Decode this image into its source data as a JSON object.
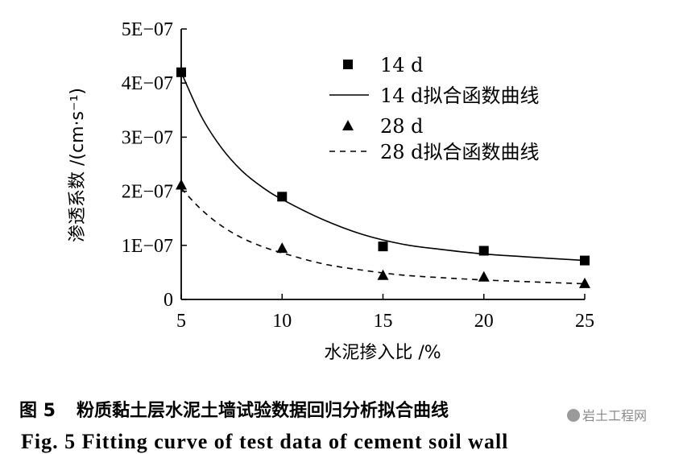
{
  "chart_data": {
    "type": "scatter",
    "xlabel": "水泥掺入比 /%",
    "ylabel": "渗透系数 /(cm·s⁻¹)",
    "x_ticks": [
      5,
      10,
      15,
      20,
      25
    ],
    "y_ticks": [
      "0",
      "1E−07",
      "2E−07",
      "3E−07",
      "4E−07",
      "5E−07"
    ],
    "xlim": [
      5,
      25
    ],
    "ylim": [
      0,
      5e-07
    ],
    "grid": false,
    "legend_position": "top-right",
    "series": [
      {
        "name": "14 d",
        "marker": "square",
        "x": [
          5,
          10,
          15,
          20,
          25
        ],
        "y": [
          4.2e-07,
          1.9e-07,
          9.8e-08,
          9e-08,
          7.2e-08
        ]
      },
      {
        "name": "14 d拟合函数曲线",
        "style": "solid",
        "x": [
          5,
          6,
          7,
          8,
          9,
          10,
          12,
          14,
          16,
          18,
          20,
          22,
          25
        ],
        "y": [
          4.2e-07,
          3.38e-07,
          2.8e-07,
          2.38e-07,
          2.08e-07,
          1.85e-07,
          1.48e-07,
          1.2e-07,
          1.02e-07,
          9.2e-08,
          8.4e-08,
          7.9e-08,
          7.2e-08
        ]
      },
      {
        "name": "28 d",
        "marker": "triangle",
        "x": [
          5,
          10,
          15,
          20,
          25
        ],
        "y": [
          2.12e-07,
          9.5e-08,
          4.5e-08,
          4.2e-08,
          3e-08
        ]
      },
      {
        "name": "28 d拟合函数曲线",
        "style": "dashed",
        "x": [
          5,
          6,
          7,
          8,
          9,
          10,
          12,
          14,
          16,
          18,
          20,
          22,
          25
        ],
        "y": [
          2.05e-07,
          1.66e-07,
          1.36e-07,
          1.14e-07,
          9.8e-08,
          8.6e-08,
          6.6e-08,
          5.4e-08,
          4.5e-08,
          4e-08,
          3.6e-08,
          3.3e-08,
          2.9e-08
        ]
      }
    ]
  },
  "caption": {
    "number": "图 5",
    "text": "粉质黏土层水泥土墙试验数据回归分析拟合曲线",
    "english": "Fig. 5   Fitting curve of test data of cement soil wall"
  },
  "watermark": "岩土工程网"
}
